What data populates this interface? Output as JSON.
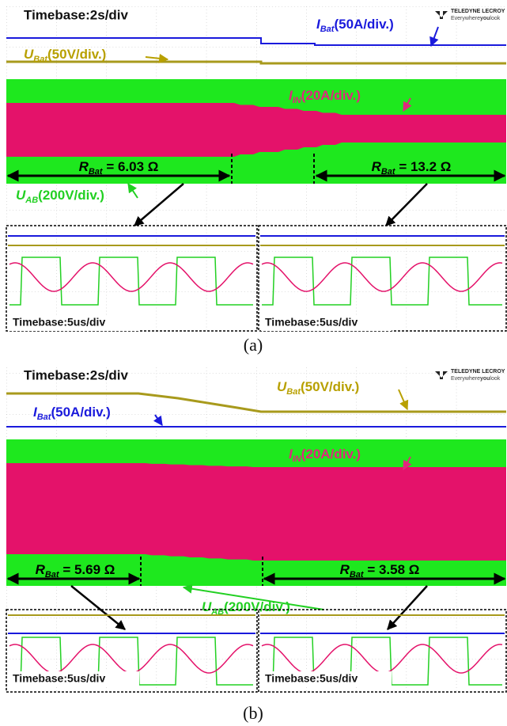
{
  "panels": [
    {
      "timebase": "Timebase:2s/div",
      "brand": {
        "name": "TELEDYNE LECROY",
        "tagline": [
          "Everywhere",
          "you",
          "look"
        ]
      },
      "labels": [
        {
          "symbol": "I",
          "subscript": "Bat",
          "text": "(50A/div.)"
        },
        {
          "symbol": "U",
          "subscript": "Bat",
          "text": "(50V/div.)"
        },
        {
          "symbol": "I",
          "subscript": "IN",
          "text": "(20A/div.)"
        },
        {
          "symbol": "U",
          "subscript": "AB",
          "text": "(200V/div.)"
        }
      ],
      "resistances": [
        {
          "symbol": "R",
          "subscript": "Bat",
          "text": " = 6.03 Ω"
        },
        {
          "symbol": "R",
          "subscript": "Bat",
          "text": " = 13.2 Ω"
        }
      ],
      "zoom_timebases": [
        "Timebase:5us/div",
        "Timebase:5us/div"
      ],
      "caption": "(a)"
    },
    {
      "timebase": "Timebase:2s/div",
      "brand": {
        "name": "TELEDYNE LECROY",
        "tagline": [
          "Everywhere",
          "you",
          "look"
        ]
      },
      "labels": [
        {
          "symbol": "I",
          "subscript": "Bat",
          "text": "(50A/div.)"
        },
        {
          "symbol": "U",
          "subscript": "Bat",
          "text": "(50V/div.)"
        },
        {
          "symbol": "I",
          "subscript": "IN",
          "text": "(20A/div.)"
        },
        {
          "symbol": "U",
          "subscript": "AB",
          "text": "(200V/div.)"
        }
      ],
      "resistances": [
        {
          "symbol": "R",
          "subscript": "Bat",
          "text": " = 5.69 Ω"
        },
        {
          "symbol": "R",
          "subscript": "Bat",
          "text": " = 3.58 Ω"
        }
      ],
      "zoom_timebases": [
        "Timebase:5us/div",
        "Timebase:5us/div"
      ],
      "caption": "(b)"
    }
  ]
}
